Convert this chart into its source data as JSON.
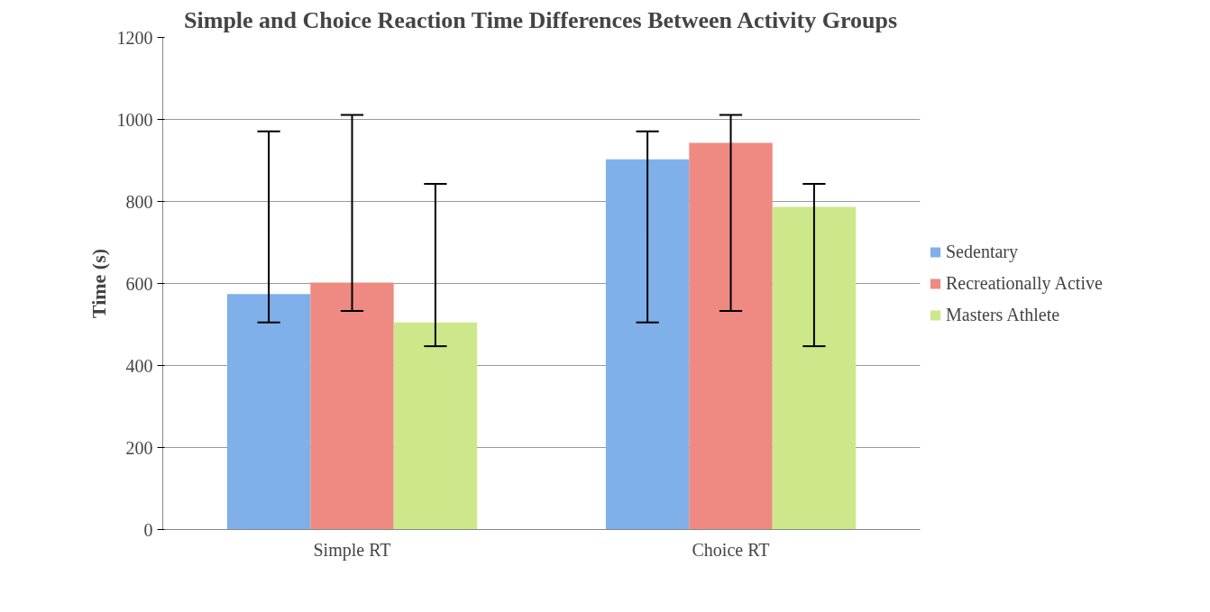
{
  "chart_data": {
    "type": "bar",
    "title": "Simple and Choice Reaction Time Differences Between Activity Groups",
    "ylabel": "Time (s)",
    "categories": [
      "Simple RT",
      "Choice RT"
    ],
    "series": [
      {
        "name": "Sedentary",
        "color": "#7fb0ea",
        "values": [
          574,
          903
        ],
        "errors": [
          [
            505,
            971
          ],
          [
            505,
            971
          ]
        ]
      },
      {
        "name": "Recreationally Active",
        "color": "#ee8a82",
        "values": [
          602,
          943
        ],
        "errors": [
          [
            533,
            1011
          ],
          [
            533,
            1011
          ]
        ]
      },
      {
        "name": "Masters Athlete",
        "color": "#cde88a",
        "values": [
          505,
          787
        ],
        "errors": [
          [
            447,
            843
          ],
          [
            447,
            843
          ]
        ]
      }
    ],
    "ylim": [
      0,
      1200
    ],
    "yticks": [
      0,
      200,
      400,
      600,
      800,
      1000,
      1200
    ],
    "grid": "y",
    "legend": "right"
  }
}
